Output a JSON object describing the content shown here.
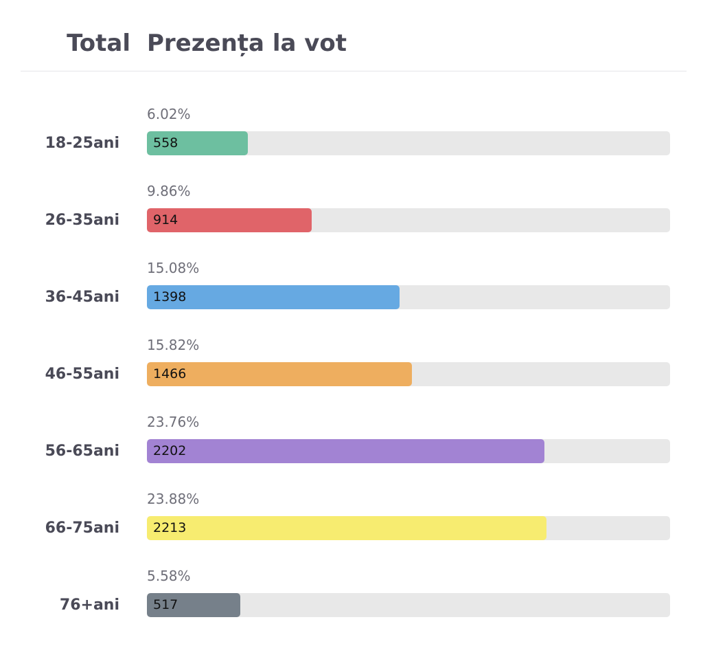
{
  "header": {
    "left_title": "Total",
    "right_title": "Prezența la vot"
  },
  "chart_data": {
    "type": "bar",
    "orientation": "horizontal",
    "categories": [
      "18-25ani",
      "26-35ani",
      "36-45ani",
      "46-55ani",
      "56-65ani",
      "66-75ani",
      "76+ani"
    ],
    "values": [
      558,
      914,
      1398,
      1466,
      2202,
      2213,
      517
    ],
    "percent_labels": [
      "6.02%",
      "9.86%",
      "15.08%",
      "15.82%",
      "23.76%",
      "23.88%",
      "5.58%"
    ],
    "percents": [
      6.02,
      9.86,
      15.08,
      15.82,
      23.76,
      23.88,
      5.58
    ],
    "colors": [
      "#6dbfa0",
      "#e06469",
      "#66a9e2",
      "#eeae5f",
      "#a283d3",
      "#f7ec70",
      "#76808a"
    ],
    "xlim": [
      0,
      100
    ]
  }
}
